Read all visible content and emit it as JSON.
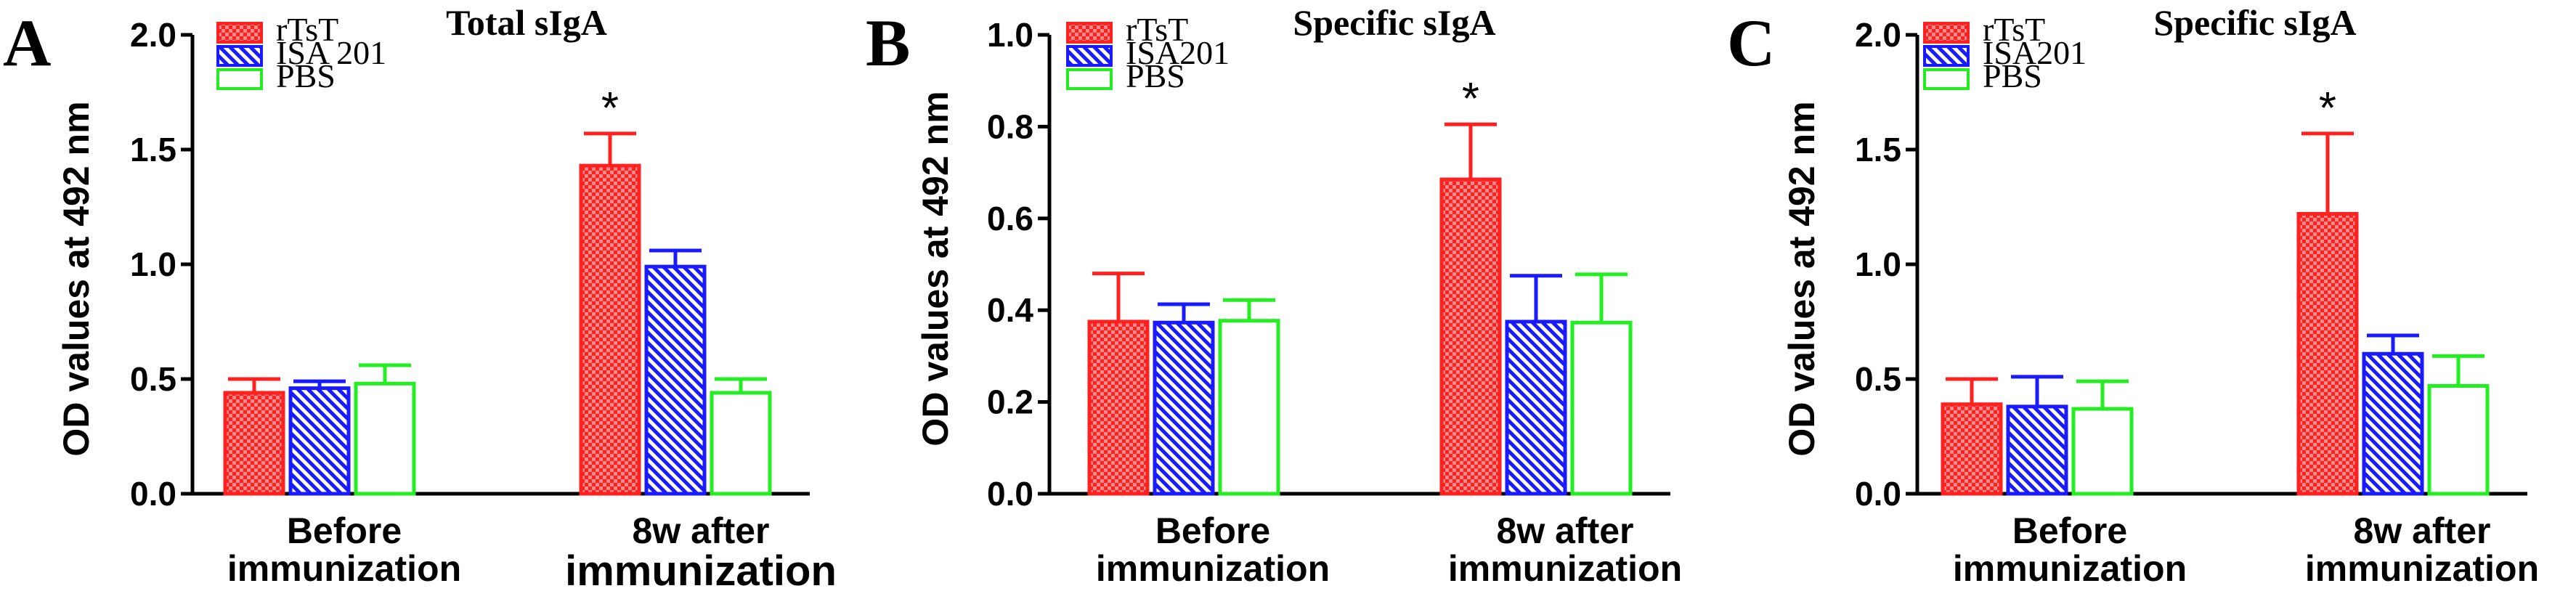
{
  "colors": {
    "rTsT": "#ff2020",
    "ISA": "#1a1aff",
    "PBS": "#22ee22"
  },
  "chart_data": [
    {
      "type": "bar",
      "panel_letter": "A",
      "title": "Total sIgA",
      "ylabel": "OD values at 492 nm",
      "xlabel": "",
      "ylim": [
        0,
        2.0
      ],
      "yticks": [
        "0.0",
        "0.5",
        "1.0",
        "1.5",
        "2.0"
      ],
      "ytick_values": [
        0,
        0.5,
        1.0,
        1.5,
        2.0
      ],
      "categories": [
        {
          "line1": "Before",
          "line2": "immunization"
        },
        {
          "line1": "8w after",
          "line2": "immunization"
        }
      ],
      "series": [
        {
          "name": "rTsT",
          "key": "rTsT",
          "values": [
            0.44,
            1.43
          ],
          "errors": [
            0.06,
            0.14
          ],
          "significant": [
            false,
            true
          ]
        },
        {
          "name": "ISA 201",
          "key": "ISA",
          "values": [
            0.46,
            0.99
          ],
          "errors": [
            0.03,
            0.07
          ],
          "significant": [
            false,
            false
          ]
        },
        {
          "name": "PBS",
          "key": "PBS",
          "values": [
            0.48,
            0.44
          ],
          "errors": [
            0.08,
            0.06
          ],
          "significant": [
            false,
            false
          ]
        }
      ],
      "significance_marker": "*",
      "legend_position": "top-left"
    },
    {
      "type": "bar",
      "panel_letter": "B",
      "title": "Specific sIgA",
      "ylabel": "OD values at 492 nm",
      "xlabel": "",
      "ylim": [
        0,
        1.0
      ],
      "yticks": [
        "0.0",
        "0.2",
        "0.4",
        "0.6",
        "0.8",
        "1.0"
      ],
      "ytick_values": [
        0,
        0.2,
        0.4,
        0.6,
        0.8,
        1.0
      ],
      "categories": [
        {
          "line1": "Before",
          "line2": "immunization"
        },
        {
          "line1": "8w after",
          "line2": "immunization"
        }
      ],
      "series": [
        {
          "name": "rTsT",
          "key": "rTsT",
          "values": [
            0.375,
            0.685
          ],
          "errors": [
            0.105,
            0.12
          ],
          "significant": [
            false,
            true
          ]
        },
        {
          "name": "ISA201",
          "key": "ISA",
          "values": [
            0.373,
            0.375
          ],
          "errors": [
            0.04,
            0.1
          ],
          "significant": [
            false,
            false
          ]
        },
        {
          "name": "PBS",
          "key": "PBS",
          "values": [
            0.377,
            0.373
          ],
          "errors": [
            0.045,
            0.105
          ],
          "significant": [
            false,
            false
          ]
        }
      ],
      "significance_marker": "*",
      "legend_position": "top-left"
    },
    {
      "type": "bar",
      "panel_letter": "C",
      "title": "Specific sIgA",
      "ylabel": "OD values at 492 nm",
      "xlabel": "",
      "ylim": [
        0,
        2.0
      ],
      "yticks": [
        "0.0",
        "0.5",
        "1.0",
        "1.5",
        "2.0"
      ],
      "ytick_values": [
        0,
        0.5,
        1.0,
        1.5,
        2.0
      ],
      "categories": [
        {
          "line1": "Before",
          "line2": "immunization"
        },
        {
          "line1": "8w after",
          "line2": "immunization"
        }
      ],
      "series": [
        {
          "name": "rTsT",
          "key": "rTsT",
          "values": [
            0.39,
            1.22
          ],
          "errors": [
            0.11,
            0.35
          ],
          "significant": [
            false,
            true
          ]
        },
        {
          "name": "ISA201",
          "key": "ISA",
          "values": [
            0.38,
            0.61
          ],
          "errors": [
            0.13,
            0.08
          ],
          "significant": [
            false,
            false
          ]
        },
        {
          "name": "PBS",
          "key": "PBS",
          "values": [
            0.37,
            0.47
          ],
          "errors": [
            0.12,
            0.13
          ],
          "significant": [
            false,
            false
          ]
        }
      ],
      "significance_marker": "*",
      "legend_position": "top-left"
    }
  ]
}
